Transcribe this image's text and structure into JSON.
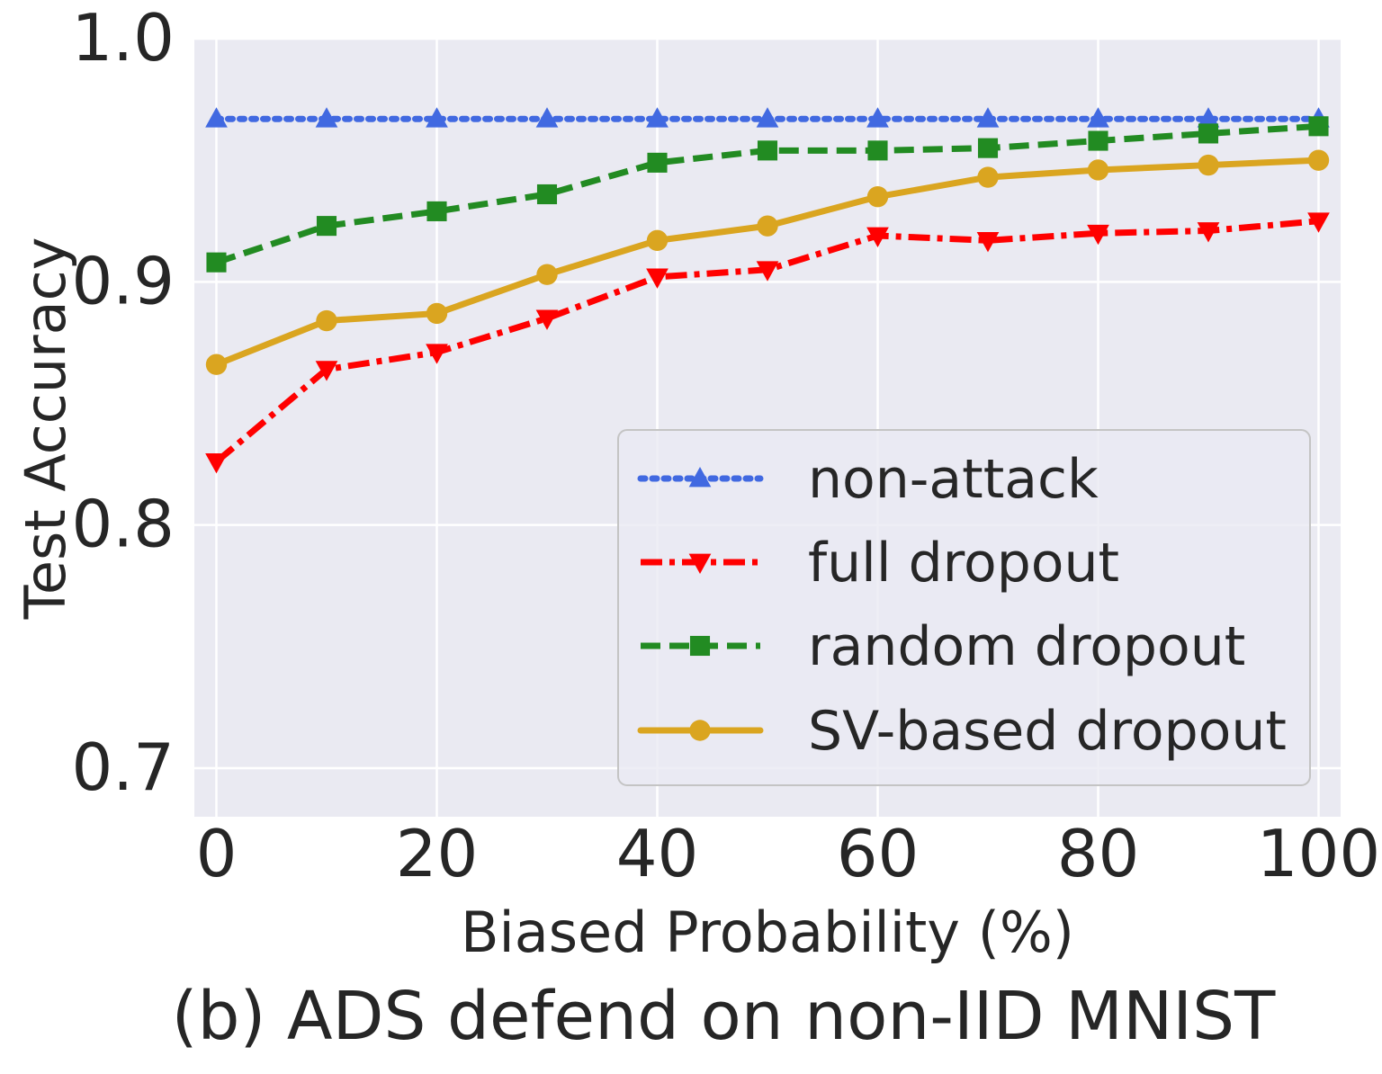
{
  "chart_data": {
    "type": "line",
    "caption": "(b) ADS defend on non-IID MNIST",
    "xlabel": "Biased Probability (%)",
    "ylabel": "Test Accuracy",
    "x": [
      0,
      10,
      20,
      30,
      40,
      50,
      60,
      70,
      80,
      90,
      100
    ],
    "xlim": [
      -2,
      102
    ],
    "ylim": [
      0.68,
      1.0
    ],
    "xticks": [
      "0",
      "20",
      "40",
      "60",
      "80",
      "100"
    ],
    "yticks": [
      "0.7",
      "0.8",
      "0.9",
      "1.0"
    ],
    "grid": true,
    "legend_position": "lower-right",
    "series": [
      {
        "name": "non-attack",
        "color": "#4169e1",
        "line_style": "dotted",
        "marker": "triangle-up",
        "values": [
          0.967,
          0.967,
          0.967,
          0.967,
          0.967,
          0.967,
          0.967,
          0.967,
          0.967,
          0.967,
          0.967
        ]
      },
      {
        "name": "full dropout",
        "color": "#ff0000",
        "line_style": "dashdot",
        "marker": "triangle-down",
        "values": [
          0.826,
          0.864,
          0.871,
          0.885,
          0.902,
          0.905,
          0.919,
          0.917,
          0.92,
          0.921,
          0.925
        ]
      },
      {
        "name": "random dropout",
        "color": "#228b22",
        "line_style": "dashed",
        "marker": "square",
        "values": [
          0.908,
          0.923,
          0.929,
          0.936,
          0.949,
          0.954,
          0.954,
          0.955,
          0.958,
          0.961,
          0.964
        ]
      },
      {
        "name": "SV-based dropout",
        "color": "#daa520",
        "line_style": "solid",
        "marker": "circle",
        "values": [
          0.866,
          0.884,
          0.887,
          0.903,
          0.917,
          0.923,
          0.935,
          0.943,
          0.946,
          0.948,
          0.95
        ]
      }
    ]
  }
}
